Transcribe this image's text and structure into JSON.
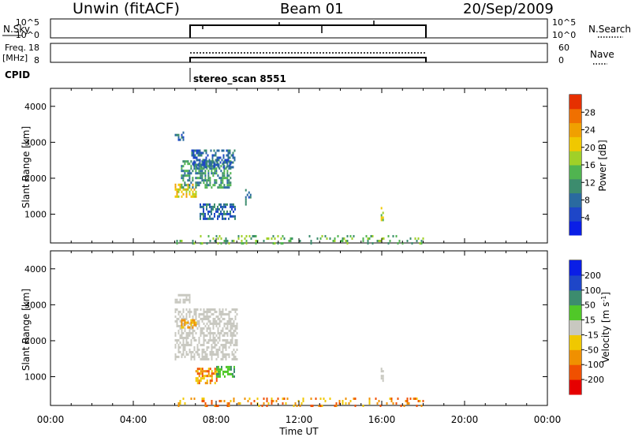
{
  "header": {
    "station": "Unwin (fitACF)",
    "beam": "Beam 01",
    "date": "20/Sep/2009"
  },
  "panels": {
    "nsky_label": "N.Sky",
    "nsky_ticks": [
      "10^5",
      "10^0"
    ],
    "nsearch_label": "N.Search",
    "freq_label_1": "Freq.",
    "freq_label_2": "[MHz]",
    "freq_ticks": [
      "18",
      "8"
    ],
    "nave_ticks": [
      "60",
      "0"
    ],
    "nave_label": "Nave",
    "cpid_label": "CPID",
    "cpid_value": "stereo_scan 8551"
  },
  "chart_data": [
    {
      "type": "heatmap",
      "name": "power",
      "ylabel": "Slant Range [km]",
      "colorbar_label": "Power [dB]",
      "colorbar_ticks": [
        4,
        8,
        12,
        16,
        20,
        24,
        28
      ],
      "colorbar_range": [
        0,
        32
      ],
      "colorbar_colors": [
        "#0a1ee6",
        "#1e46c8",
        "#2a6aa0",
        "#3c8c6e",
        "#50b450",
        "#a0d028",
        "#f0c800",
        "#f0a000",
        "#f07000",
        "#e63000"
      ],
      "ylim": [
        200,
        4500
      ],
      "yticks": [
        1000,
        2000,
        3000,
        4000
      ],
      "xlim_hours": [
        0,
        24
      ],
      "regions": [
        {
          "t0": 6.0,
          "t1": 6.4,
          "r0": 3100,
          "r1": 3300,
          "level": 2
        },
        {
          "t0": 6.0,
          "t1": 7.0,
          "r0": 1500,
          "r1": 1850,
          "level": 6
        },
        {
          "t0": 6.3,
          "t1": 8.7,
          "r0": 1750,
          "r1": 2500,
          "level": 3
        },
        {
          "t0": 6.8,
          "t1": 8.9,
          "r0": 2300,
          "r1": 2800,
          "level": 2
        },
        {
          "t0": 7.2,
          "t1": 8.9,
          "r0": 900,
          "r1": 1300,
          "level": 2
        },
        {
          "t0": 9.4,
          "t1": 9.7,
          "r0": 1300,
          "r1": 1700,
          "level": 2
        },
        {
          "t0": 15.95,
          "t1": 16.1,
          "r0": 850,
          "r1": 1200,
          "level": 5
        },
        {
          "t0": 6.0,
          "t1": 18.0,
          "r0": 220,
          "r1": 420,
          "level": 4
        }
      ]
    },
    {
      "type": "heatmap",
      "name": "velocity",
      "xlabel": "Time UT",
      "ylabel": "Slant Range [km]",
      "colorbar_label": "Velocity [m s^-1]",
      "colorbar_ticks": [
        -200,
        -100,
        -50,
        -15,
        15,
        50,
        100,
        200
      ],
      "colorbar_colors": [
        "#e60000",
        "#f05000",
        "#f09000",
        "#f0c800",
        "#c8c8c0",
        "#50c828",
        "#3c8c6e",
        "#1e46c8",
        "#0a1ee6"
      ],
      "ylim": [
        200,
        4500
      ],
      "yticks": [
        1000,
        2000,
        3000,
        4000
      ],
      "xlim_hours": [
        0,
        24
      ],
      "xticks": [
        "00:00",
        "04:00",
        "08:00",
        "12:00",
        "16:00",
        "20:00",
        "00:00"
      ],
      "regions": [
        {
          "t0": 6.0,
          "t1": 6.7,
          "r0": 3100,
          "r1": 3300,
          "class": "ground"
        },
        {
          "t0": 6.0,
          "t1": 9.0,
          "r0": 1500,
          "r1": 2900,
          "class": "ground"
        },
        {
          "t0": 6.3,
          "t1": 7.0,
          "r0": 2400,
          "r1": 2600,
          "class": "low_negative"
        },
        {
          "t0": 7.0,
          "t1": 8.0,
          "r0": 850,
          "r1": 1250,
          "class": "negative"
        },
        {
          "t0": 8.0,
          "t1": 8.9,
          "r0": 1000,
          "r1": 1300,
          "class": "positive"
        },
        {
          "t0": 15.95,
          "t1": 16.1,
          "r0": 850,
          "r1": 1250,
          "class": "ground"
        },
        {
          "t0": 6.0,
          "t1": 18.0,
          "r0": 220,
          "r1": 420,
          "class": "negative"
        }
      ]
    }
  ]
}
